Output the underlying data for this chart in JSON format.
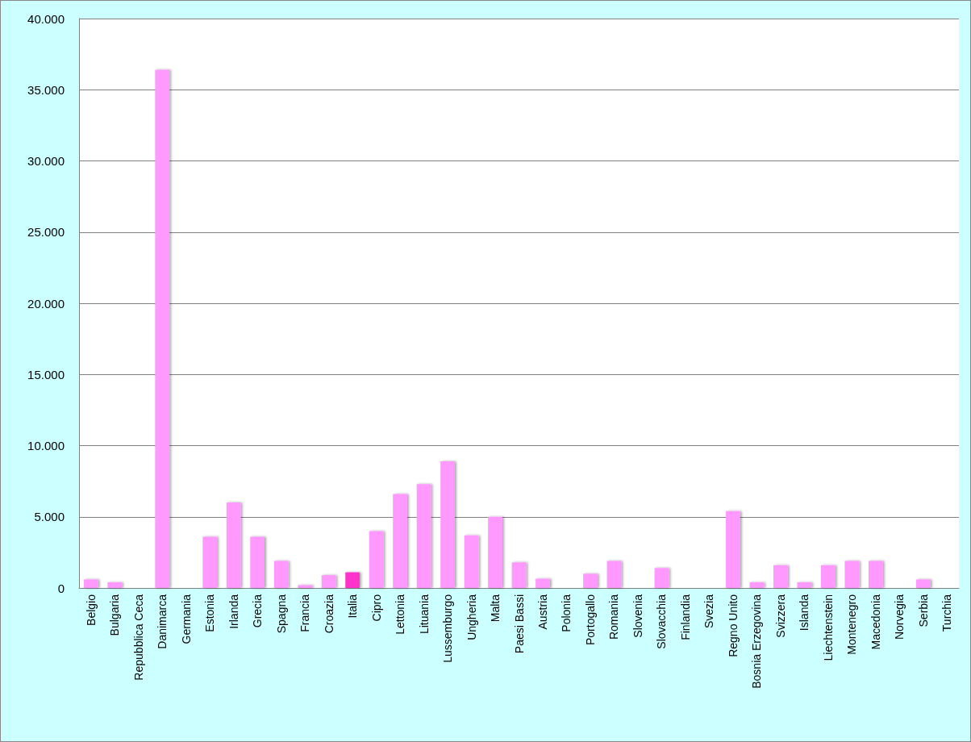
{
  "chart_data": {
    "type": "bar",
    "categories": [
      "Belgio",
      "Bulgaria",
      "Repubblica Ceca",
      "Danimarca",
      "Germania",
      "Estonia",
      "Irlanda",
      "Grecia",
      "Spagna",
      "Francia",
      "Croazia",
      "Italia",
      "Cipro",
      "Lettonia",
      "Lituania",
      "Lussemburgo",
      "Ungheria",
      "Malta",
      "Paesi Bassi",
      "Austria",
      "Polonia",
      "Portogallo",
      "Romania",
      "Slovenia",
      "Slovacchia",
      "Finlandia",
      "Svezia",
      "Regno Unito",
      "Bosnia Erzegovina",
      "Svizzera",
      "Islanda",
      "Liechtenstein",
      "Montenegro",
      "Macedonia",
      "Norvegia",
      "Serbia",
      "Turchia"
    ],
    "values": [
      600,
      400,
      0,
      36400,
      0,
      3600,
      6000,
      3600,
      1900,
      200,
      900,
      1100,
      4000,
      6600,
      7300,
      8900,
      3700,
      5000,
      1800,
      650,
      0,
      1000,
      1900,
      0,
      1400,
      0,
      0,
      5400,
      400,
      1600,
      400,
      1600,
      1900,
      1900,
      0,
      600,
      0
    ],
    "colors": [
      "#ff99ff",
      "#ff99ff",
      "#ff99ff",
      "#ff99ff",
      "#ff99ff",
      "#ff99ff",
      "#ff99ff",
      "#ff99ff",
      "#ff99ff",
      "#ff99ff",
      "#ff99ff",
      "#ff33cc",
      "#ff99ff",
      "#ff99ff",
      "#ff99ff",
      "#ff99ff",
      "#ff99ff",
      "#ff99ff",
      "#ff99ff",
      "#ff99ff",
      "#ff99ff",
      "#ff99ff",
      "#ff99ff",
      "#ff99ff",
      "#ff99ff",
      "#ff99ff",
      "#ff99ff",
      "#ff99ff",
      "#ff99ff",
      "#ff99ff",
      "#ff99ff",
      "#ff99ff",
      "#ff99ff",
      "#ff99ff",
      "#ff99ff",
      "#ff99ff",
      "#ff99ff"
    ],
    "ylim": [
      0,
      40000
    ],
    "yticks": [
      {
        "value": 0,
        "label": "0"
      },
      {
        "value": 5000,
        "label": "5.000"
      },
      {
        "value": 10000,
        "label": "10.000"
      },
      {
        "value": 15000,
        "label": "15.000"
      },
      {
        "value": 20000,
        "label": "20.000"
      },
      {
        "value": 25000,
        "label": "25.000"
      },
      {
        "value": 30000,
        "label": "30.000"
      },
      {
        "value": 35000,
        "label": "35.000"
      },
      {
        "value": 40000,
        "label": "40.000"
      }
    ],
    "grid": "y"
  }
}
